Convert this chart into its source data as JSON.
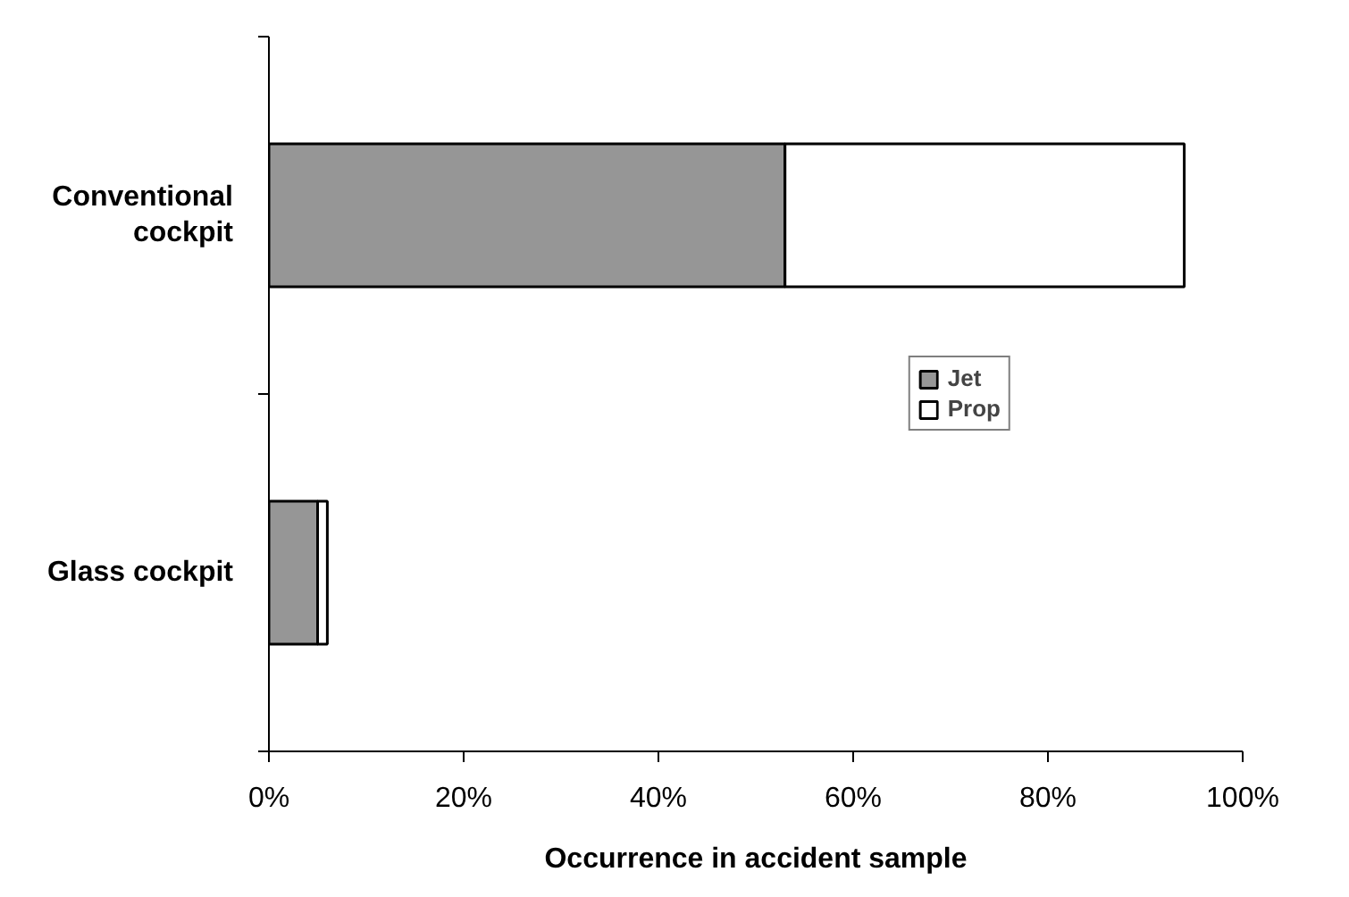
{
  "chart_data": {
    "type": "bar",
    "orientation": "horizontal",
    "stacked": true,
    "categories": [
      "Conventional cockpit",
      "Glass cockpit"
    ],
    "series": [
      {
        "name": "Jet",
        "color": "#969696",
        "values": [
          53,
          5
        ]
      },
      {
        "name": "Prop",
        "color": "#ffffff",
        "values": [
          41,
          1
        ]
      }
    ],
    "xlim": [
      0,
      100
    ],
    "xticks": [
      {
        "value": 0,
        "label": "0%"
      },
      {
        "value": 20,
        "label": "20%"
      },
      {
        "value": 40,
        "label": "40%"
      },
      {
        "value": 60,
        "label": "60%"
      },
      {
        "value": 80,
        "label": "80%"
      },
      {
        "value": 100,
        "label": "100%"
      }
    ],
    "xlabel": "Occurrence in accident sample",
    "grid": false,
    "legend": "right"
  }
}
